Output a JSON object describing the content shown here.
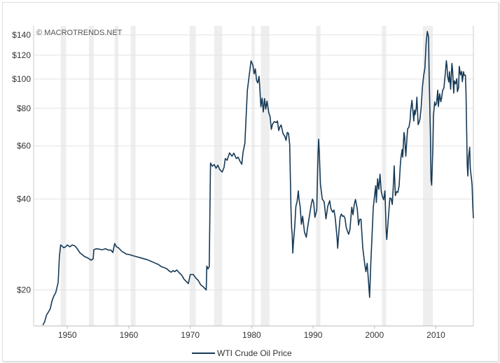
{
  "credit": "© MACROTRENDS.NET",
  "chart_data": {
    "type": "line",
    "title": "",
    "xlabel": "",
    "ylabel": "",
    "y_scale": "log",
    "ylim": [
      15.2,
      150
    ],
    "xlim": [
      1944.5,
      2016.1
    ],
    "grid": "horizontal",
    "legend_position": "bottom-center",
    "y_ticks": [
      {
        "value": 20,
        "label": "$20"
      },
      {
        "value": 40,
        "label": "$40"
      },
      {
        "value": 60,
        "label": "$60"
      },
      {
        "value": 80,
        "label": "$80"
      },
      {
        "value": 100,
        "label": "$100"
      },
      {
        "value": 120,
        "label": "$120"
      },
      {
        "value": 140,
        "label": "$140"
      }
    ],
    "x_ticks": [
      {
        "value": 1950,
        "label": "1950"
      },
      {
        "value": 1960,
        "label": "1960"
      },
      {
        "value": 1970,
        "label": "1970"
      },
      {
        "value": 1980,
        "label": "1980"
      },
      {
        "value": 1990,
        "label": "1990"
      },
      {
        "value": 2000,
        "label": "2000"
      },
      {
        "value": 2010,
        "label": "2010"
      }
    ],
    "recessions": [
      [
        1948.9,
        1949.8
      ],
      [
        1953.5,
        1954.3
      ],
      [
        1957.7,
        1958.3
      ],
      [
        1960.3,
        1961.1
      ],
      [
        1969.9,
        1970.9
      ],
      [
        1973.9,
        1975.2
      ],
      [
        1980.0,
        1980.5
      ],
      [
        1981.5,
        1982.9
      ],
      [
        1990.5,
        1991.2
      ],
      [
        2001.2,
        2001.9
      ],
      [
        2007.9,
        2009.5
      ]
    ],
    "series": [
      {
        "name": "WTI Crude Oil Price",
        "color": "#163a57",
        "points": [
          [
            1946.0,
            15.3
          ],
          [
            1946.3,
            15.7
          ],
          [
            1946.6,
            16.5
          ],
          [
            1946.9,
            16.9
          ],
          [
            1947.2,
            17.3
          ],
          [
            1947.5,
            18.4
          ],
          [
            1947.8,
            19.1
          ],
          [
            1948.1,
            19.6
          ],
          [
            1948.5,
            21.2
          ],
          [
            1948.7,
            25.8
          ],
          [
            1948.9,
            28.2
          ],
          [
            1949.1,
            28.0
          ],
          [
            1949.4,
            27.6
          ],
          [
            1949.7,
            27.8
          ],
          [
            1950.0,
            28.2
          ],
          [
            1950.4,
            27.8
          ],
          [
            1950.8,
            28.2
          ],
          [
            1951.2,
            28.0
          ],
          [
            1951.6,
            27.4
          ],
          [
            1952.0,
            26.6
          ],
          [
            1952.4,
            26.2
          ],
          [
            1952.8,
            25.8
          ],
          [
            1953.2,
            25.6
          ],
          [
            1953.6,
            25.3
          ],
          [
            1953.9,
            25.1
          ],
          [
            1954.2,
            25.4
          ],
          [
            1954.3,
            27.2
          ],
          [
            1954.7,
            27.4
          ],
          [
            1955.2,
            27.3
          ],
          [
            1955.7,
            27.2
          ],
          [
            1956.2,
            27.4
          ],
          [
            1956.7,
            27.1
          ],
          [
            1957.1,
            27.1
          ],
          [
            1957.4,
            26.6
          ],
          [
            1957.7,
            28.5
          ],
          [
            1958.0,
            27.8
          ],
          [
            1958.3,
            27.6
          ],
          [
            1958.6,
            27.2
          ],
          [
            1958.9,
            26.8
          ],
          [
            1959.2,
            26.6
          ],
          [
            1959.6,
            26.3
          ],
          [
            1960.1,
            26.2
          ],
          [
            1960.6,
            26.0
          ],
          [
            1961.2,
            25.8
          ],
          [
            1961.8,
            25.6
          ],
          [
            1962.4,
            25.4
          ],
          [
            1963.0,
            25.2
          ],
          [
            1963.6,
            24.9
          ],
          [
            1964.2,
            24.6
          ],
          [
            1964.8,
            24.3
          ],
          [
            1965.3,
            23.9
          ],
          [
            1965.8,
            23.7
          ],
          [
            1966.2,
            23.5
          ],
          [
            1966.6,
            23.1
          ],
          [
            1966.9,
            22.9
          ],
          [
            1967.2,
            23.2
          ],
          [
            1967.5,
            23.0
          ],
          [
            1967.8,
            23.3
          ],
          [
            1968.2,
            22.8
          ],
          [
            1968.6,
            22.4
          ],
          [
            1969.0,
            21.7
          ],
          [
            1969.4,
            21.3
          ],
          [
            1969.7,
            21.0
          ],
          [
            1970.0,
            22.5
          ],
          [
            1970.5,
            22.5
          ],
          [
            1970.9,
            21.9
          ],
          [
            1971.3,
            21.5
          ],
          [
            1971.7,
            20.8
          ],
          [
            1972.1,
            20.5
          ],
          [
            1972.4,
            20.2
          ],
          [
            1972.6,
            20.0
          ],
          [
            1972.7,
            24.0
          ],
          [
            1972.9,
            23.5
          ],
          [
            1973.1,
            23.9
          ],
          [
            1973.3,
            52.7
          ],
          [
            1973.6,
            51.4
          ],
          [
            1973.9,
            52.1
          ],
          [
            1974.2,
            50.6
          ],
          [
            1974.5,
            51.8
          ],
          [
            1974.8,
            50.1
          ],
          [
            1975.2,
            49.2
          ],
          [
            1975.5,
            50.9
          ],
          [
            1975.7,
            54.5
          ],
          [
            1976.0,
            53.8
          ],
          [
            1976.4,
            56.9
          ],
          [
            1976.8,
            55.5
          ],
          [
            1977.1,
            56.8
          ],
          [
            1977.5,
            54.5
          ],
          [
            1977.8,
            55.1
          ],
          [
            1978.1,
            53.4
          ],
          [
            1978.4,
            52.2
          ],
          [
            1978.6,
            57.2
          ],
          [
            1978.9,
            61.3
          ],
          [
            1979.1,
            75.4
          ],
          [
            1979.3,
            91.5
          ],
          [
            1979.6,
            102.9
          ],
          [
            1979.9,
            114.8
          ],
          [
            1980.2,
            111.3
          ],
          [
            1980.4,
            104.0
          ],
          [
            1980.6,
            108.1
          ],
          [
            1980.8,
            98.9
          ],
          [
            1981.0,
            97.1
          ],
          [
            1981.2,
            102.1
          ],
          [
            1981.3,
            95.4
          ],
          [
            1981.5,
            81.0
          ],
          [
            1981.7,
            86.4
          ],
          [
            1981.9,
            77.8
          ],
          [
            1982.1,
            86.1
          ],
          [
            1982.3,
            79.5
          ],
          [
            1982.5,
            84.5
          ],
          [
            1982.8,
            77.1
          ],
          [
            1983.0,
            75.1
          ],
          [
            1983.2,
            68.1
          ],
          [
            1983.4,
            70.9
          ],
          [
            1983.7,
            72.3
          ],
          [
            1984.0,
            71.7
          ],
          [
            1984.2,
            72.6
          ],
          [
            1984.4,
            67.5
          ],
          [
            1984.6,
            69.5
          ],
          [
            1984.8,
            70.4
          ],
          [
            1985.1,
            66.0
          ],
          [
            1985.4,
            64.6
          ],
          [
            1985.6,
            62.6
          ],
          [
            1985.8,
            66.5
          ],
          [
            1986.0,
            66.1
          ],
          [
            1986.2,
            60.6
          ],
          [
            1986.4,
            37.3
          ],
          [
            1986.5,
            32.3
          ],
          [
            1986.6,
            30.4
          ],
          [
            1986.7,
            26.5
          ],
          [
            1986.8,
            28.7
          ],
          [
            1987.0,
            32.2
          ],
          [
            1987.2,
            37.8
          ],
          [
            1987.4,
            39.3
          ],
          [
            1987.6,
            42.6
          ],
          [
            1987.7,
            40.2
          ],
          [
            1987.9,
            37.6
          ],
          [
            1988.1,
            33.0
          ],
          [
            1988.3,
            35.1
          ],
          [
            1988.6,
            31.1
          ],
          [
            1988.9,
            29.9
          ],
          [
            1989.1,
            32.1
          ],
          [
            1989.4,
            35.1
          ],
          [
            1989.7,
            38.3
          ],
          [
            1989.9,
            40.0
          ],
          [
            1990.1,
            38.9
          ],
          [
            1990.3,
            34.8
          ],
          [
            1990.4,
            35.5
          ],
          [
            1990.6,
            36.8
          ],
          [
            1990.8,
            56.1
          ],
          [
            1990.9,
            63.2
          ],
          [
            1991.0,
            58.1
          ],
          [
            1991.2,
            44.8
          ],
          [
            1991.5,
            40.0
          ],
          [
            1991.8,
            39.2
          ],
          [
            1992.1,
            34.4
          ],
          [
            1992.4,
            37.9
          ],
          [
            1992.7,
            39.5
          ],
          [
            1992.9,
            37.2
          ],
          [
            1993.2,
            36.2
          ],
          [
            1993.4,
            36.8
          ],
          [
            1993.6,
            34.7
          ],
          [
            1993.9,
            29.8
          ],
          [
            1994.0,
            27.5
          ],
          [
            1994.2,
            31.1
          ],
          [
            1994.4,
            34.8
          ],
          [
            1994.6,
            35.7
          ],
          [
            1994.8,
            35.1
          ],
          [
            1995.0,
            35.2
          ],
          [
            1995.2,
            34.5
          ],
          [
            1995.4,
            32.2
          ],
          [
            1995.6,
            31.3
          ],
          [
            1995.8,
            30.6
          ],
          [
            1996.0,
            31.7
          ],
          [
            1996.3,
            37.6
          ],
          [
            1996.5,
            35.5
          ],
          [
            1996.7,
            38.3
          ],
          [
            1996.9,
            39.9
          ],
          [
            1997.2,
            37.1
          ],
          [
            1997.4,
            32.8
          ],
          [
            1997.6,
            34.3
          ],
          [
            1997.8,
            34.3
          ],
          [
            1998.1,
            27.5
          ],
          [
            1998.4,
            24.4
          ],
          [
            1998.6,
            23.0
          ],
          [
            1998.8,
            24.5
          ],
          [
            1999.0,
            21.7
          ],
          [
            1999.2,
            18.9
          ],
          [
            1999.4,
            24.5
          ],
          [
            1999.6,
            30.3
          ],
          [
            1999.8,
            37.4
          ],
          [
            2000.0,
            40.9
          ],
          [
            2000.2,
            44.3
          ],
          [
            2000.3,
            39.0
          ],
          [
            2000.5,
            46.7
          ],
          [
            2000.7,
            43.1
          ],
          [
            2000.9,
            48.4
          ],
          [
            2001.1,
            42.4
          ],
          [
            2001.3,
            40.7
          ],
          [
            2001.5,
            39.8
          ],
          [
            2001.7,
            42.6
          ],
          [
            2001.9,
            31.3
          ],
          [
            2002.0,
            29.4
          ],
          [
            2002.2,
            33.5
          ],
          [
            2002.5,
            40.3
          ],
          [
            2002.7,
            40.2
          ],
          [
            2002.9,
            38.4
          ],
          [
            2003.1,
            45.8
          ],
          [
            2003.2,
            51.6
          ],
          [
            2003.4,
            41.1
          ],
          [
            2003.6,
            42.4
          ],
          [
            2003.8,
            42.1
          ],
          [
            2004.0,
            44.2
          ],
          [
            2004.2,
            51.6
          ],
          [
            2004.3,
            54.8
          ],
          [
            2004.5,
            58.4
          ],
          [
            2004.6,
            55.1
          ],
          [
            2004.8,
            66.5
          ],
          [
            2004.9,
            64.5
          ],
          [
            2005.1,
            55.5
          ],
          [
            2005.3,
            64.7
          ],
          [
            2005.4,
            68.5
          ],
          [
            2005.6,
            69.1
          ],
          [
            2005.8,
            73.2
          ],
          [
            2005.9,
            78.8
          ],
          [
            2006.1,
            85.0
          ],
          [
            2006.2,
            80.4
          ],
          [
            2006.4,
            72.6
          ],
          [
            2006.5,
            78.8
          ],
          [
            2006.6,
            76.2
          ],
          [
            2006.8,
            80.3
          ],
          [
            2006.9,
            87.1
          ],
          [
            2007.1,
            70.6
          ],
          [
            2007.3,
            72.2
          ],
          [
            2007.4,
            73.8
          ],
          [
            2007.6,
            80.2
          ],
          [
            2007.8,
            93.9
          ],
          [
            2008.0,
            102.7
          ],
          [
            2008.2,
            108.3
          ],
          [
            2008.4,
            131.2
          ],
          [
            2008.6,
            143.8
          ],
          [
            2008.8,
            137.7
          ],
          [
            2008.9,
            103.1
          ],
          [
            2009.1,
            65.7
          ],
          [
            2009.2,
            46.3
          ],
          [
            2009.3,
            44.5
          ],
          [
            2009.5,
            58.6
          ],
          [
            2009.6,
            75.6
          ],
          [
            2009.8,
            84.0
          ],
          [
            2009.9,
            81.8
          ],
          [
            2010.1,
            82.8
          ],
          [
            2010.3,
            91.8
          ],
          [
            2010.4,
            81.1
          ],
          [
            2010.6,
            89.4
          ],
          [
            2010.8,
            84.1
          ],
          [
            2010.9,
            85.9
          ],
          [
            2011.1,
            91.7
          ],
          [
            2011.2,
            92.5
          ],
          [
            2011.3,
            93.4
          ],
          [
            2011.5,
            103.1
          ],
          [
            2011.7,
            115.0
          ],
          [
            2011.8,
            110.3
          ],
          [
            2011.9,
            101.9
          ],
          [
            2012.1,
            97.7
          ],
          [
            2012.2,
            105.7
          ],
          [
            2012.4,
            92.5
          ],
          [
            2012.6,
            112.6
          ],
          [
            2012.7,
            107.7
          ],
          [
            2012.9,
            89.8
          ],
          [
            2013.0,
            98.6
          ],
          [
            2013.2,
            96.3
          ],
          [
            2013.4,
            100.2
          ],
          [
            2013.5,
            90.8
          ],
          [
            2013.7,
            93.8
          ],
          [
            2013.8,
            110.1
          ],
          [
            2014.0,
            103.2
          ],
          [
            2014.2,
            106.0
          ],
          [
            2014.3,
            98.0
          ],
          [
            2014.5,
            105.7
          ],
          [
            2014.6,
            102.9
          ],
          [
            2014.8,
            103.0
          ],
          [
            2014.9,
            89.6
          ],
          [
            2015.1,
            51.9
          ],
          [
            2015.2,
            47.7
          ],
          [
            2015.3,
            54.5
          ],
          [
            2015.5,
            59.4
          ],
          [
            2015.6,
            50.5
          ],
          [
            2015.8,
            46.4
          ],
          [
            2015.9,
            44.2
          ],
          [
            2016.0,
            38.1
          ],
          [
            2016.1,
            34.6
          ]
        ]
      }
    ]
  }
}
